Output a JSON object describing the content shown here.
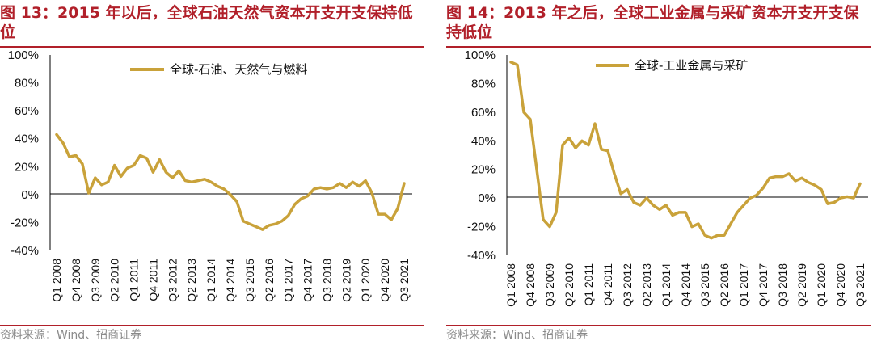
{
  "charts": [
    {
      "title": "图 13：2015 年以后，全球石油天然气资本开支开支保持低位",
      "source": "资料来源：Wind、招商证券"
    },
    {
      "title": "图 14：2013 年之后，全球工业金属与采矿资本开支开支保持低位",
      "source": "资料来源：Wind、招商证券"
    }
  ],
  "colors": {
    "accent": "#b1202a",
    "series": "#c9a23a"
  },
  "chart_data": [
    {
      "type": "line",
      "ylim": [
        -40,
        100
      ],
      "y_ticks": [
        "100%",
        "80%",
        "60%",
        "40%",
        "20%",
        "0%",
        "-20%",
        "-40%"
      ],
      "x_ticks": [
        "Q1 2008",
        "Q4 2008",
        "Q3 2009",
        "Q2 2010",
        "Q1 2011",
        "Q4 2011",
        "Q3 2012",
        "Q2 2013",
        "Q1 2014",
        "Q4 2014",
        "Q3 2015",
        "Q2 2016",
        "Q1 2017",
        "Q4 2017",
        "Q3 2018",
        "Q2 2019",
        "Q1 2020",
        "Q4 2020",
        "Q3 2021"
      ],
      "legend_position": "top-center",
      "grid": false,
      "series": [
        {
          "name": "全球-石油、天然气与燃料",
          "color": "#c9a23a",
          "x": [
            "Q1 2008",
            "Q2 2008",
            "Q3 2008",
            "Q4 2008",
            "Q1 2009",
            "Q2 2009",
            "Q3 2009",
            "Q4 2009",
            "Q1 2010",
            "Q2 2010",
            "Q3 2010",
            "Q4 2010",
            "Q1 2011",
            "Q2 2011",
            "Q3 2011",
            "Q4 2011",
            "Q1 2012",
            "Q2 2012",
            "Q3 2012",
            "Q4 2012",
            "Q1 2013",
            "Q2 2013",
            "Q3 2013",
            "Q4 2013",
            "Q1 2014",
            "Q2 2014",
            "Q3 2014",
            "Q4 2014",
            "Q1 2015",
            "Q2 2015",
            "Q3 2015",
            "Q4 2015",
            "Q1 2016",
            "Q2 2016",
            "Q3 2016",
            "Q4 2016",
            "Q1 2017",
            "Q2 2017",
            "Q3 2017",
            "Q4 2017",
            "Q1 2018",
            "Q2 2018",
            "Q3 2018",
            "Q4 2018",
            "Q1 2019",
            "Q2 2019",
            "Q3 2019",
            "Q4 2019",
            "Q1 2020",
            "Q2 2020",
            "Q3 2020",
            "Q4 2020",
            "Q1 2021",
            "Q2 2021",
            "Q3 2021"
          ],
          "values": [
            43,
            37,
            27,
            28,
            22,
            1,
            12,
            7,
            9,
            21,
            13,
            19,
            21,
            28,
            26,
            16,
            25,
            16,
            12,
            17,
            10,
            9,
            10,
            11,
            9,
            6,
            4,
            0,
            -5,
            -19,
            -21,
            -23,
            -25,
            -22,
            -21,
            -19,
            -15,
            -7,
            -3,
            -1,
            4,
            5,
            4,
            5,
            8,
            5,
            9,
            6,
            10,
            1,
            -14,
            -14,
            -18,
            -10,
            8
          ]
        }
      ]
    },
    {
      "type": "line",
      "ylim": [
        -40,
        100
      ],
      "y_ticks": [
        "100%",
        "80%",
        "60%",
        "40%",
        "20%",
        "0%",
        "-20%",
        "-40%"
      ],
      "x_ticks": [
        "Q1 2008",
        "Q4 2008",
        "Q3 2009",
        "Q2 2010",
        "Q1 2011",
        "Q4 2011",
        "Q3 2012",
        "Q2 2013",
        "Q1 2014",
        "Q4 2014",
        "Q3 2015",
        "Q2 2016",
        "Q1 2017",
        "Q4 2017",
        "Q3 2018",
        "Q2 2019",
        "Q1 2020",
        "Q4 2020",
        "Q3 2021"
      ],
      "legend_position": "top-center",
      "grid": false,
      "series": [
        {
          "name": "全球-工业金属与采矿",
          "color": "#c9a23a",
          "x": [
            "Q1 2008",
            "Q2 2008",
            "Q3 2008",
            "Q4 2008",
            "Q1 2009",
            "Q2 2009",
            "Q3 2009",
            "Q4 2009",
            "Q1 2010",
            "Q2 2010",
            "Q3 2010",
            "Q4 2010",
            "Q1 2011",
            "Q2 2011",
            "Q3 2011",
            "Q4 2011",
            "Q1 2012",
            "Q2 2012",
            "Q3 2012",
            "Q4 2012",
            "Q1 2013",
            "Q2 2013",
            "Q3 2013",
            "Q4 2013",
            "Q1 2014",
            "Q2 2014",
            "Q3 2014",
            "Q4 2014",
            "Q1 2015",
            "Q2 2015",
            "Q3 2015",
            "Q4 2015",
            "Q1 2016",
            "Q2 2016",
            "Q3 2016",
            "Q4 2016",
            "Q1 2017",
            "Q2 2017",
            "Q3 2017",
            "Q4 2017",
            "Q1 2018",
            "Q2 2018",
            "Q3 2018",
            "Q4 2018",
            "Q1 2019",
            "Q2 2019",
            "Q3 2019",
            "Q4 2019",
            "Q1 2020",
            "Q2 2020",
            "Q3 2020",
            "Q4 2020",
            "Q1 2021",
            "Q2 2021",
            "Q3 2021"
          ],
          "values": [
            95,
            93,
            60,
            55,
            20,
            -15,
            -20,
            -10,
            37,
            42,
            35,
            40,
            37,
            52,
            34,
            33,
            17,
            3,
            6,
            -3,
            -5,
            0,
            -5,
            -8,
            -5,
            -12,
            -10,
            -10,
            -20,
            -18,
            -26,
            -28,
            -26,
            -26,
            -18,
            -10,
            -5,
            0,
            2,
            7,
            14,
            15,
            15,
            17,
            12,
            14,
            11,
            9,
            6,
            -4,
            -3,
            0,
            1,
            0,
            10
          ]
        }
      ]
    }
  ]
}
